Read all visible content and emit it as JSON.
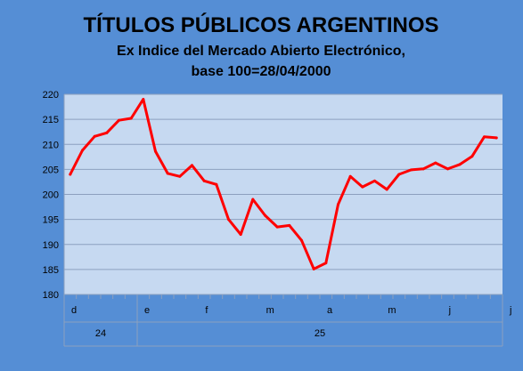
{
  "colors": {
    "background": "#558ED5",
    "plot_area": "#C6D9F1",
    "line": "#FF0000",
    "grid": "#8CA0BF"
  },
  "chart_data": {
    "type": "line",
    "title": "TÍTULOS PÚBLICOS ARGENTINOS",
    "subtitle_lines": [
      "Ex Indice del Mercado Abierto Electrónico,",
      "base 100=28/04/2000"
    ],
    "xlabel": "",
    "ylabel": "",
    "ylim": [
      180,
      220
    ],
    "yticks": [
      180,
      185,
      190,
      195,
      200,
      205,
      210,
      215,
      220
    ],
    "grid": true,
    "legend": "none",
    "x_month_labels": [
      "d",
      "e",
      "f",
      "m",
      "a",
      "m",
      "j",
      "j"
    ],
    "x_month_label_index": [
      0,
      6,
      11,
      16,
      21,
      26,
      31,
      36
    ],
    "x_year_labels": [
      "24",
      "25"
    ],
    "values": [
      204.0,
      208.8,
      211.6,
      212.3,
      214.8,
      215.2,
      219.0,
      208.6,
      204.2,
      203.6,
      205.8,
      202.7,
      202.0,
      195.0,
      192.0,
      199.0,
      195.8,
      193.5,
      193.8,
      190.8,
      185.1,
      186.3,
      198.0,
      203.6,
      201.5,
      202.7,
      201.0,
      204.0,
      204.9,
      205.1,
      206.3,
      205.1,
      206.0,
      207.6,
      211.5,
      211.3
    ]
  }
}
